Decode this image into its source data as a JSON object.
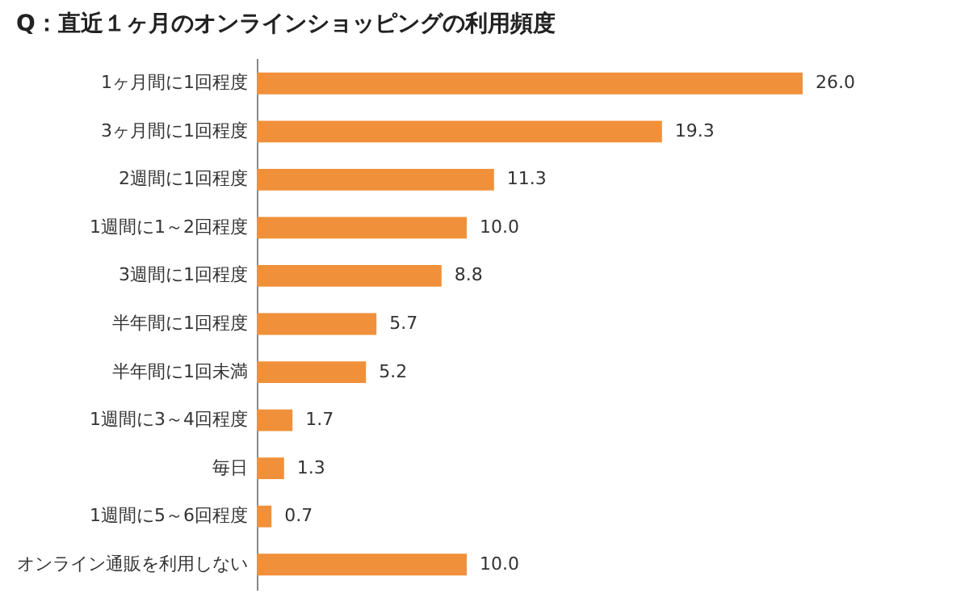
{
  "chart_data": {
    "type": "bar",
    "orientation": "horizontal",
    "title": "Q：直近１ヶ月のオンラインショッピングの利用頻度",
    "categories": [
      "1ヶ月間に1回程度",
      "3ヶ月間に1回程度",
      "2週間に1回程度",
      "1週間に1～2回程度",
      "3週間に1回程度",
      "半年間に1回程度",
      "半年間に1回未満",
      "1週間に3～4回程度",
      "毎日",
      "1週間に5～6回程度",
      "オンライン通販を利用しない"
    ],
    "values": [
      26.0,
      19.3,
      11.3,
      10.0,
      8.8,
      5.7,
      5.2,
      1.7,
      1.3,
      0.7,
      10.0
    ],
    "value_labels": [
      "26.0",
      "19.3",
      "11.3",
      "10.0",
      "8.8",
      "5.7",
      "5.2",
      "1.7",
      "1.3",
      "0.7",
      "10.0"
    ],
    "color": "#f0903a",
    "grid": false
  }
}
